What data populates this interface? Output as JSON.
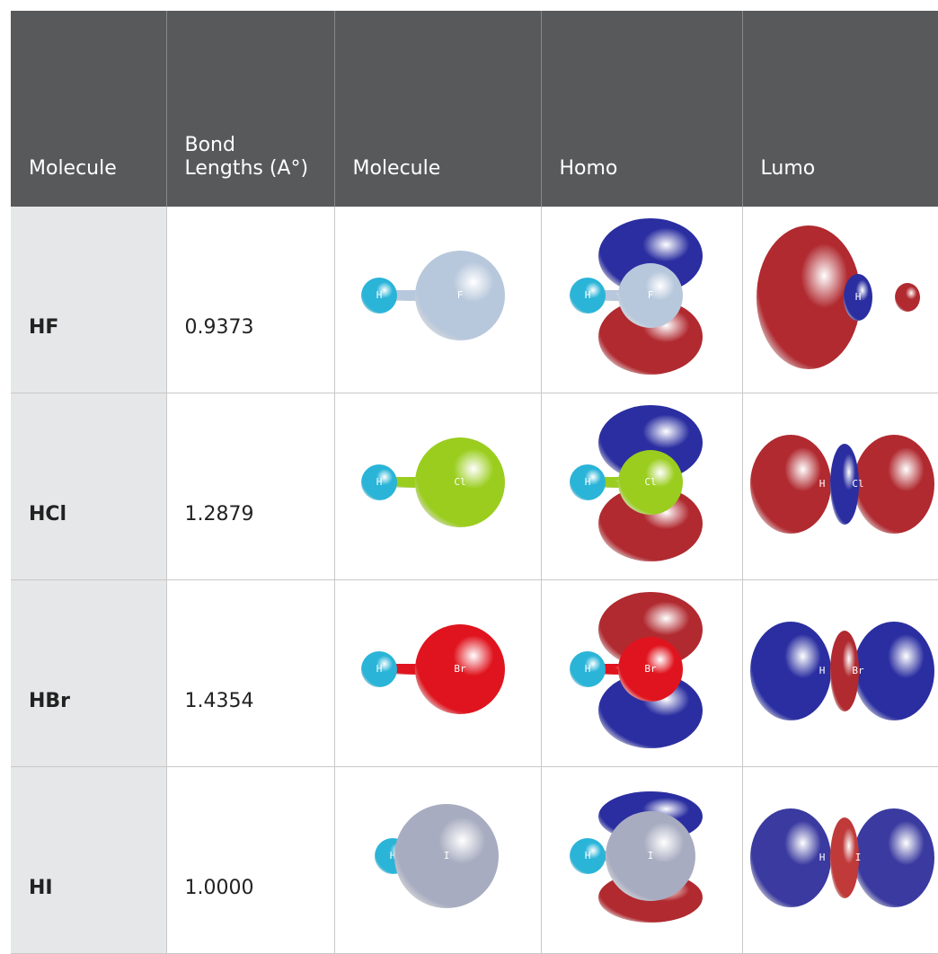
{
  "table": {
    "header": [
      "Molecule",
      "Bond Lengths (A°)",
      "Molecule",
      "Homo",
      "Lumo"
    ],
    "rows": [
      {
        "molecule": "HF",
        "bond_length": "0.9373",
        "atoms": [
          "H",
          "F"
        ]
      },
      {
        "molecule": "HCl",
        "bond_length": "1.2879",
        "atoms": [
          "H",
          "Cl"
        ]
      },
      {
        "molecule": "HBr",
        "bond_length": "1.4354",
        "atoms": [
          "H",
          "Br"
        ]
      },
      {
        "molecule": "HI",
        "bond_length": "1.0000",
        "atoms": [
          "H",
          "I"
        ]
      }
    ]
  }
}
